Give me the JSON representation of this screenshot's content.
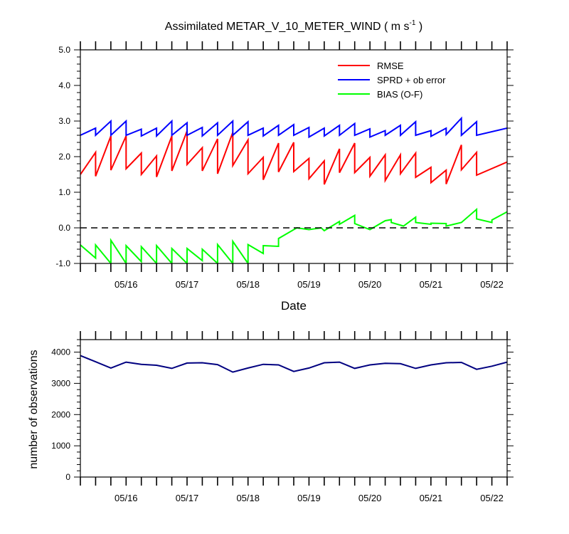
{
  "chart_data": [
    {
      "type": "line",
      "title_main": "Assimilated METAR_V_10_METER_WIND ( m s",
      "title_sup": "-1",
      "title_end": " )",
      "xlabel": "Date",
      "ylabel": "",
      "xlim": [
        0,
        7.0
      ],
      "ylim": [
        -1.0,
        5.0
      ],
      "ytick_values": [
        -1.0,
        0.0,
        1.0,
        2.0,
        3.0,
        4.0,
        5.0
      ],
      "ytick_labels": [
        "-1.0",
        "0.0",
        "1.0",
        "2.0",
        "3.0",
        "4.0",
        "5.0"
      ],
      "xtick_values": [
        0.75,
        1.75,
        2.75,
        3.75,
        4.75,
        5.75,
        6.75
      ],
      "xtick_labels": [
        "05/16",
        "05/17",
        "05/18",
        "05/19",
        "05/20",
        "05/21",
        "05/22"
      ],
      "reference_line": 0.0,
      "legend_position": "top-right",
      "series": [
        {
          "name": "RMSE",
          "color": "#ff0000",
          "points": [
            [
              0.0,
              1.5
            ],
            [
              0.25,
              2.12
            ],
            [
              0.25,
              1.45
            ],
            [
              0.5,
              2.58
            ],
            [
              0.5,
              1.62
            ],
            [
              0.75,
              2.58
            ],
            [
              0.75,
              1.66
            ],
            [
              1.0,
              2.1
            ],
            [
              1.0,
              1.5
            ],
            [
              1.25,
              2.02
            ],
            [
              1.25,
              1.43
            ],
            [
              1.5,
              2.58
            ],
            [
              1.5,
              1.6
            ],
            [
              1.75,
              2.72
            ],
            [
              1.75,
              1.78
            ],
            [
              2.0,
              2.25
            ],
            [
              2.0,
              1.6
            ],
            [
              2.25,
              2.5
            ],
            [
              2.25,
              1.52
            ],
            [
              2.5,
              2.68
            ],
            [
              2.5,
              1.75
            ],
            [
              2.75,
              2.47
            ],
            [
              2.75,
              1.52
            ],
            [
              3.0,
              1.98
            ],
            [
              3.0,
              1.35
            ],
            [
              3.25,
              2.38
            ],
            [
              3.25,
              1.57
            ],
            [
              3.5,
              2.4
            ],
            [
              3.5,
              1.58
            ],
            [
              3.75,
              1.95
            ],
            [
              3.75,
              1.38
            ],
            [
              4.0,
              1.88
            ],
            [
              4.0,
              1.22
            ],
            [
              4.25,
              2.22
            ],
            [
              4.25,
              1.55
            ],
            [
              4.5,
              2.38
            ],
            [
              4.5,
              1.55
            ],
            [
              4.75,
              1.98
            ],
            [
              4.75,
              1.45
            ],
            [
              5.0,
              2.05
            ],
            [
              5.0,
              1.33
            ],
            [
              5.25,
              2.05
            ],
            [
              5.25,
              1.52
            ],
            [
              5.5,
              2.1
            ],
            [
              5.5,
              1.42
            ],
            [
              5.75,
              1.7
            ],
            [
              5.75,
              1.27
            ],
            [
              6.0,
              1.62
            ],
            [
              6.0,
              1.23
            ],
            [
              6.25,
              2.33
            ],
            [
              6.25,
              1.63
            ],
            [
              6.5,
              2.12
            ],
            [
              6.5,
              1.48
            ],
            [
              7.0,
              1.85
            ]
          ]
        },
        {
          "name": "SPRD + ob error",
          "color": "#0000ff",
          "points": [
            [
              0.0,
              2.6
            ],
            [
              0.25,
              2.8
            ],
            [
              0.25,
              2.6
            ],
            [
              0.5,
              3.0
            ],
            [
              0.5,
              2.6
            ],
            [
              0.75,
              3.0
            ],
            [
              0.75,
              2.6
            ],
            [
              1.0,
              2.77
            ],
            [
              1.0,
              2.58
            ],
            [
              1.25,
              2.8
            ],
            [
              1.25,
              2.58
            ],
            [
              1.5,
              3.0
            ],
            [
              1.5,
              2.6
            ],
            [
              1.75,
              2.95
            ],
            [
              1.75,
              2.6
            ],
            [
              2.0,
              2.82
            ],
            [
              2.0,
              2.58
            ],
            [
              2.25,
              2.95
            ],
            [
              2.25,
              2.6
            ],
            [
              2.5,
              3.0
            ],
            [
              2.5,
              2.6
            ],
            [
              2.75,
              2.98
            ],
            [
              2.75,
              2.6
            ],
            [
              3.0,
              2.8
            ],
            [
              3.0,
              2.58
            ],
            [
              3.25,
              2.88
            ],
            [
              3.25,
              2.6
            ],
            [
              3.5,
              2.9
            ],
            [
              3.5,
              2.6
            ],
            [
              3.75,
              2.82
            ],
            [
              3.75,
              2.55
            ],
            [
              4.0,
              2.8
            ],
            [
              4.0,
              2.58
            ],
            [
              4.25,
              2.88
            ],
            [
              4.25,
              2.6
            ],
            [
              4.5,
              2.93
            ],
            [
              4.5,
              2.6
            ],
            [
              4.75,
              2.78
            ],
            [
              4.75,
              2.55
            ],
            [
              5.0,
              2.73
            ],
            [
              5.0,
              2.6
            ],
            [
              5.25,
              2.88
            ],
            [
              5.25,
              2.6
            ],
            [
              5.5,
              2.98
            ],
            [
              5.5,
              2.6
            ],
            [
              5.75,
              2.73
            ],
            [
              5.75,
              2.57
            ],
            [
              6.0,
              2.8
            ],
            [
              6.0,
              2.62
            ],
            [
              6.25,
              3.08
            ],
            [
              6.25,
              2.6
            ],
            [
              6.5,
              2.98
            ],
            [
              6.5,
              2.6
            ],
            [
              7.0,
              2.8
            ]
          ]
        },
        {
          "name": "BIAS (O-F)",
          "color": "#00ff00",
          "points": [
            [
              0.0,
              -0.48
            ],
            [
              0.25,
              -0.85
            ],
            [
              0.25,
              -0.48
            ],
            [
              0.5,
              -1.0
            ],
            [
              0.5,
              -0.35
            ],
            [
              0.75,
              -1.0
            ],
            [
              0.75,
              -0.5
            ],
            [
              1.0,
              -0.95
            ],
            [
              1.0,
              -0.53
            ],
            [
              1.25,
              -1.0
            ],
            [
              1.25,
              -0.5
            ],
            [
              1.5,
              -1.0
            ],
            [
              1.5,
              -0.58
            ],
            [
              1.75,
              -1.0
            ],
            [
              1.75,
              -0.58
            ],
            [
              2.0,
              -0.92
            ],
            [
              2.0,
              -0.6
            ],
            [
              2.25,
              -1.0
            ],
            [
              2.25,
              -0.47
            ],
            [
              2.5,
              -1.0
            ],
            [
              2.5,
              -0.38
            ],
            [
              2.75,
              -1.0
            ],
            [
              2.75,
              -0.47
            ],
            [
              3.0,
              -0.72
            ],
            [
              3.0,
              -0.5
            ],
            [
              3.25,
              -0.52
            ],
            [
              3.25,
              -0.3
            ],
            [
              3.55,
              0.0
            ],
            [
              3.75,
              -0.05
            ],
            [
              3.95,
              0.0
            ],
            [
              4.0,
              -0.08
            ],
            [
              4.25,
              0.18
            ],
            [
              4.25,
              0.1
            ],
            [
              4.5,
              0.35
            ],
            [
              4.5,
              0.12
            ],
            [
              4.75,
              -0.05
            ],
            [
              5.0,
              0.2
            ],
            [
              5.1,
              0.23
            ],
            [
              5.1,
              0.15
            ],
            [
              5.3,
              0.05
            ],
            [
              5.5,
              0.3
            ],
            [
              5.5,
              0.15
            ],
            [
              5.75,
              0.1
            ],
            [
              5.75,
              0.13
            ],
            [
              6.0,
              0.12
            ],
            [
              6.0,
              0.05
            ],
            [
              6.25,
              0.15
            ],
            [
              6.25,
              0.15
            ],
            [
              6.5,
              0.52
            ],
            [
              6.5,
              0.25
            ],
            [
              6.75,
              0.15
            ],
            [
              6.75,
              0.22
            ],
            [
              7.0,
              0.45
            ]
          ]
        }
      ]
    },
    {
      "type": "line",
      "title": "",
      "xlabel": "",
      "ylabel": "number of observations",
      "xlim": [
        0,
        7.0
      ],
      "ylim": [
        0,
        4400
      ],
      "ytick_values": [
        0,
        1000,
        2000,
        3000,
        4000
      ],
      "ytick_labels": [
        "0",
        "1000",
        "2000",
        "3000",
        "4000"
      ],
      "xtick_values": [
        0.75,
        1.75,
        2.75,
        3.75,
        4.75,
        5.75,
        6.75
      ],
      "xtick_labels": [
        "05/16",
        "05/17",
        "05/18",
        "05/19",
        "05/20",
        "05/21",
        "05/22"
      ],
      "series": [
        {
          "name": "number of observations",
          "color": "#000080",
          "points": [
            [
              0.0,
              3890
            ],
            [
              0.25,
              3690
            ],
            [
              0.5,
              3490
            ],
            [
              0.75,
              3680
            ],
            [
              1.0,
              3610
            ],
            [
              1.25,
              3580
            ],
            [
              1.5,
              3480
            ],
            [
              1.75,
              3650
            ],
            [
              2.0,
              3660
            ],
            [
              2.25,
              3600
            ],
            [
              2.5,
              3360
            ],
            [
              2.75,
              3490
            ],
            [
              3.0,
              3610
            ],
            [
              3.25,
              3590
            ],
            [
              3.5,
              3380
            ],
            [
              3.75,
              3490
            ],
            [
              4.0,
              3660
            ],
            [
              4.25,
              3680
            ],
            [
              4.5,
              3480
            ],
            [
              4.75,
              3590
            ],
            [
              5.0,
              3640
            ],
            [
              5.25,
              3630
            ],
            [
              5.5,
              3480
            ],
            [
              5.75,
              3590
            ],
            [
              6.0,
              3660
            ],
            [
              6.25,
              3670
            ],
            [
              6.5,
              3450
            ],
            [
              6.75,
              3550
            ],
            [
              7.0,
              3680
            ]
          ]
        }
      ]
    }
  ]
}
